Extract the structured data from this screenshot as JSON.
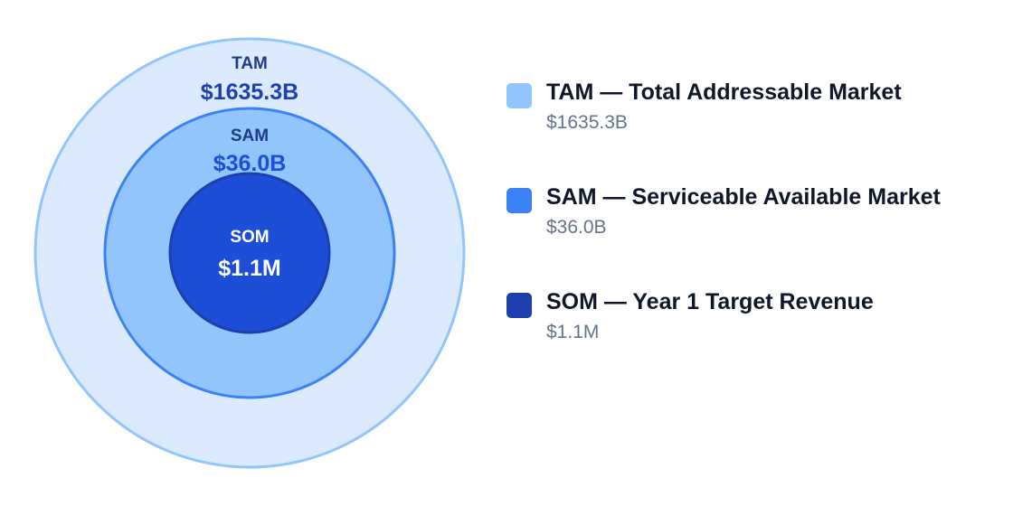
{
  "chart_data": {
    "type": "nested-circles",
    "series": [
      {
        "key": "tam",
        "short_label": "TAM",
        "value_label": "$1635.3B",
        "value_usd": 1635300000000,
        "legend_title": "TAM — Total Addressable Market",
        "fill": "#dbeafe",
        "stroke": "#93c5fd",
        "swatch": "#93c5fd",
        "label_color": "#1e3a8a",
        "value_color": "#1e40af"
      },
      {
        "key": "sam",
        "short_label": "SAM",
        "value_label": "$36.0B",
        "value_usd": 36000000000,
        "legend_title": "SAM — Serviceable Available Market",
        "fill": "#93c5fd",
        "stroke": "#3b82f6",
        "swatch": "#3b82f6",
        "label_color": "#1e3a8a",
        "value_color": "#1d4ed8"
      },
      {
        "key": "som",
        "short_label": "SOM",
        "value_label": "$1.1M",
        "value_usd": 1100000,
        "legend_title": "SOM — Year 1 Target Revenue",
        "fill": "#1d4ed8",
        "stroke": "#1e40af",
        "swatch": "#1e40af",
        "label_color": "#ffffff",
        "value_color": "#ffffff"
      }
    ]
  }
}
